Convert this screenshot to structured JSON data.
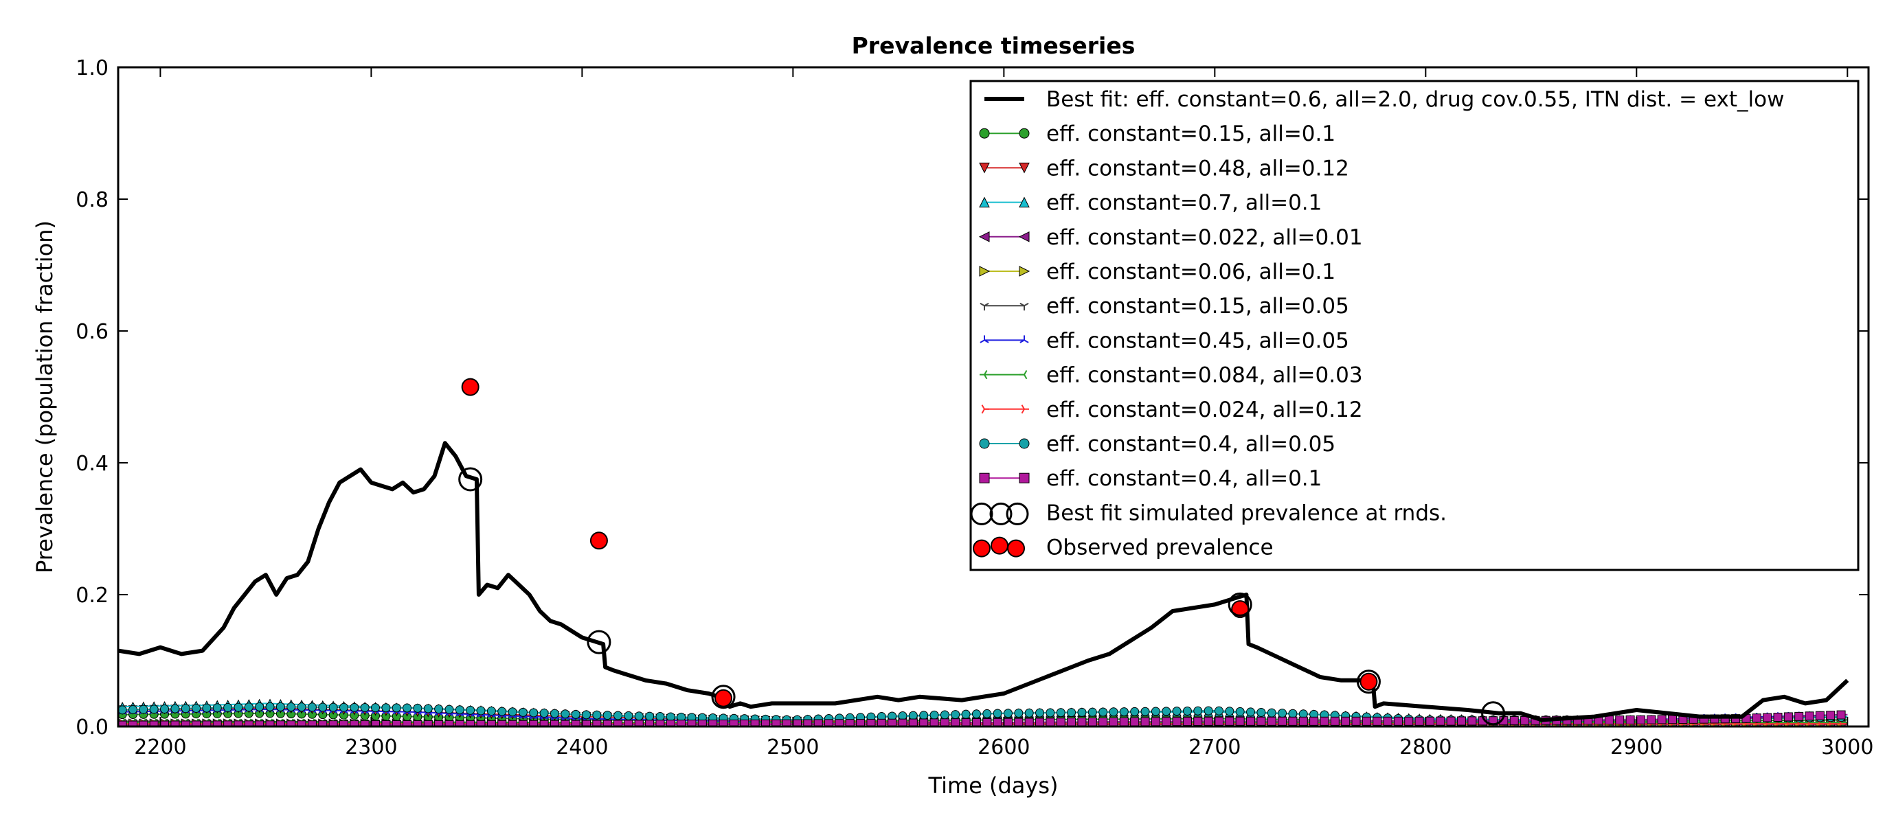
{
  "chart_data": {
    "type": "line",
    "title": "Prevalence timeseries",
    "xlabel": "Time (days)",
    "ylabel": "Prevalence (population fraction)",
    "xlim": [
      2180,
      3010
    ],
    "ylim": [
      0.0,
      1.0
    ],
    "xticks": [
      2200,
      2300,
      2400,
      2500,
      2600,
      2700,
      2800,
      2900,
      3000
    ],
    "xtick_labels": [
      "2200",
      "2300",
      "2400",
      "2500",
      "2600",
      "2700",
      "2800",
      "2900",
      "3000"
    ],
    "yticks": [
      0.0,
      0.2,
      0.4,
      0.6,
      0.8,
      1.0
    ],
    "ytick_labels": [
      "0.0",
      "0.2",
      "0.4",
      "0.6",
      "0.8",
      "1.0"
    ],
    "grid": false,
    "legend_position": "top-right",
    "best_fit": {
      "name": "Best fit: eff. constant=0.6, all=2.0, drug cov.0.55, ITN dist. = ext_low",
      "color": "#000000",
      "x": [
        2180,
        2190,
        2200,
        2210,
        2220,
        2230,
        2235,
        2240,
        2245,
        2250,
        2255,
        2260,
        2265,
        2270,
        2275,
        2280,
        2285,
        2290,
        2295,
        2300,
        2305,
        2310,
        2315,
        2320,
        2325,
        2330,
        2335,
        2340,
        2345,
        2350,
        2351,
        2355,
        2360,
        2365,
        2370,
        2375,
        2380,
        2385,
        2390,
        2395,
        2400,
        2405,
        2410,
        2411,
        2415,
        2420,
        2430,
        2440,
        2450,
        2460,
        2465,
        2470,
        2475,
        2480,
        2490,
        2500,
        2520,
        2540,
        2550,
        2560,
        2580,
        2600,
        2620,
        2640,
        2650,
        2660,
        2670,
        2680,
        2690,
        2700,
        2710,
        2715,
        2716,
        2720,
        2730,
        2740,
        2750,
        2760,
        2770,
        2775,
        2776,
        2780,
        2800,
        2820,
        2835,
        2845,
        2855,
        2880,
        2900,
        2930,
        2950,
        2960,
        2970,
        2980,
        2990,
        3000
      ],
      "y": [
        0.115,
        0.11,
        0.12,
        0.11,
        0.115,
        0.15,
        0.18,
        0.2,
        0.22,
        0.23,
        0.2,
        0.225,
        0.23,
        0.25,
        0.3,
        0.34,
        0.37,
        0.38,
        0.39,
        0.37,
        0.365,
        0.36,
        0.37,
        0.355,
        0.36,
        0.38,
        0.43,
        0.41,
        0.38,
        0.375,
        0.2,
        0.215,
        0.21,
        0.23,
        0.215,
        0.2,
        0.175,
        0.16,
        0.155,
        0.145,
        0.135,
        0.13,
        0.125,
        0.09,
        0.085,
        0.08,
        0.07,
        0.065,
        0.055,
        0.05,
        0.045,
        0.03,
        0.035,
        0.03,
        0.035,
        0.035,
        0.035,
        0.045,
        0.04,
        0.045,
        0.04,
        0.05,
        0.075,
        0.1,
        0.11,
        0.13,
        0.15,
        0.175,
        0.18,
        0.185,
        0.195,
        0.2,
        0.125,
        0.12,
        0.105,
        0.09,
        0.075,
        0.07,
        0.07,
        0.068,
        0.03,
        0.035,
        0.03,
        0.025,
        0.02,
        0.02,
        0.01,
        0.015,
        0.025,
        0.015,
        0.015,
        0.04,
        0.045,
        0.035,
        0.04,
        0.07
      ]
    },
    "series": [
      {
        "name": "eff. constant=0.15, all=0.1",
        "color": "#2ca02c",
        "marker": "circle",
        "x": [
          2180,
          2250,
          2320,
          2400,
          2500,
          2600,
          2700,
          2800,
          2900,
          3000
        ],
        "y": [
          0.018,
          0.02,
          0.015,
          0.01,
          0.008,
          0.01,
          0.012,
          0.008,
          0.008,
          0.01
        ]
      },
      {
        "name": "eff. constant=0.48, all=0.12",
        "color": "#d62728",
        "marker": "triangle-down",
        "x": [
          2180,
          2250,
          2320,
          2400,
          2500,
          2600,
          2700,
          2800,
          2900,
          3000
        ],
        "y": [
          0.025,
          0.028,
          0.022,
          0.015,
          0.008,
          0.006,
          0.006,
          0.005,
          0.005,
          0.006
        ]
      },
      {
        "name": "eff. constant=0.7, all=0.1",
        "color": "#17becf",
        "marker": "triangle-up",
        "x": [
          2180,
          2220,
          2250,
          2300,
          2350,
          2400,
          2450,
          2500,
          2550,
          2600,
          2650,
          2700,
          2750,
          2800,
          2850,
          2900,
          2950,
          3000
        ],
        "y": [
          0.03,
          0.032,
          0.035,
          0.03,
          0.025,
          0.018,
          0.012,
          0.01,
          0.015,
          0.02,
          0.022,
          0.022,
          0.018,
          0.012,
          0.01,
          0.01,
          0.012,
          0.015
        ]
      },
      {
        "name": "eff. constant=0.022, all=0.01",
        "color": "#8b1c8b",
        "marker": "triangle-left",
        "x": [
          2180,
          3000
        ],
        "y": [
          0.003,
          0.003
        ]
      },
      {
        "name": "eff. constant=0.06, all=0.1",
        "color": "#bcbd22",
        "marker": "triangle-right",
        "x": [
          2180,
          3000
        ],
        "y": [
          0.005,
          0.005
        ]
      },
      {
        "name": "eff. constant=0.15, all=0.05",
        "color": "#444444",
        "marker": "tri-down",
        "x": [
          2180,
          2300,
          2400,
          2500,
          2600,
          2700,
          2800,
          2900,
          3000
        ],
        "y": [
          0.008,
          0.007,
          0.006,
          0.005,
          0.005,
          0.005,
          0.005,
          0.005,
          0.005
        ]
      },
      {
        "name": "eff. constant=0.45, all=0.05",
        "color": "#1f1fe0",
        "marker": "tri-up",
        "x": [
          2180,
          2250,
          2320,
          2400,
          2500,
          2600,
          2700,
          2800,
          2900,
          3000
        ],
        "y": [
          0.022,
          0.026,
          0.022,
          0.012,
          0.006,
          0.006,
          0.008,
          0.006,
          0.01,
          0.018
        ]
      },
      {
        "name": "eff. constant=0.084, all=0.03",
        "color": "#2ca02c",
        "marker": "tri-left",
        "x": [
          2180,
          3000
        ],
        "y": [
          0.006,
          0.006
        ]
      },
      {
        "name": "eff. constant=0.024, all=0.12",
        "color": "#ff3030",
        "marker": "tri-right",
        "x": [
          2180,
          3000
        ],
        "y": [
          0.004,
          0.004
        ]
      },
      {
        "name": "eff. constant=0.4, all=0.05",
        "color": "#17a2a8",
        "marker": "circle",
        "x": [
          2180,
          2250,
          2320,
          2400,
          2500,
          2550,
          2600,
          2650,
          2700,
          2750,
          2800,
          2900,
          3000
        ],
        "y": [
          0.025,
          0.03,
          0.028,
          0.018,
          0.01,
          0.016,
          0.02,
          0.022,
          0.024,
          0.018,
          0.01,
          0.01,
          0.014
        ]
      },
      {
        "name": "eff. constant=0.4, all=0.1",
        "color": "#b0189b",
        "marker": "square",
        "x": [
          2180,
          2400,
          2500,
          2600,
          2700,
          2800,
          2900,
          2950,
          3000
        ],
        "y": [
          0.002,
          0.003,
          0.004,
          0.006,
          0.008,
          0.008,
          0.01,
          0.012,
          0.018
        ]
      }
    ],
    "best_fit_at_rounds": {
      "name": "Best fit simulated prevalence at rnds.",
      "x": [
        2347,
        2408,
        2467,
        2712,
        2773,
        2832
      ],
      "y": [
        0.375,
        0.128,
        0.045,
        0.185,
        0.068,
        0.02
      ]
    },
    "observed": {
      "name": "Observed prevalence",
      "color": "#ff0000",
      "x": [
        2347,
        2408,
        2467,
        2712,
        2773
      ],
      "y": [
        0.515,
        0.282,
        0.043,
        0.178,
        0.068
      ]
    }
  }
}
